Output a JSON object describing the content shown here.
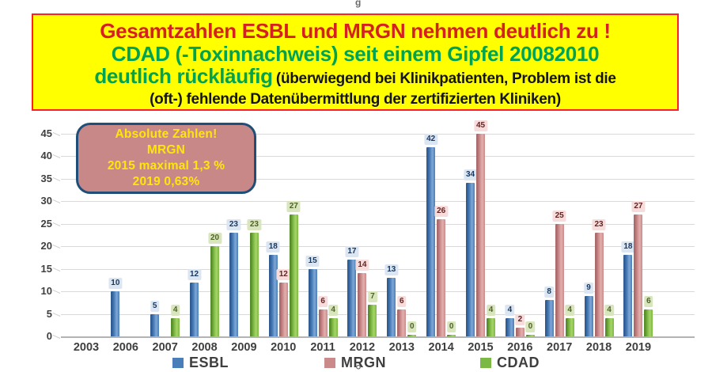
{
  "artifacts": {
    "top": "g",
    "bottom": "°"
  },
  "header": {
    "line1": "Gesamtzahlen ESBL und MRGN nehmen deutlich zu !",
    "line2": "CDAD (-Toxinnachweis) seit einem Gipfel 20082010",
    "line3_green": "deutlich rückläufig",
    "line3_black": "(überwiegend bei Klinikpatienten, Problem ist die",
    "line4": "(oft-) fehlende Datenübermittlung der zertifizierten Kliniken)",
    "colors": {
      "background": "#ffff00",
      "border": "#ff2020",
      "red_text": "#d61f1f",
      "green_text": "#00a351",
      "black_text": "#141414"
    }
  },
  "annotation": {
    "lines": [
      "Absolute Zahlen!",
      "MRGN",
      "2015 maximal 1,3 %",
      "2019 0,63%"
    ],
    "background": "#c98888",
    "border": "#1f4e79",
    "text_color": "#ffe60a"
  },
  "chart_data": {
    "type": "bar",
    "title": "",
    "xlabel": "",
    "ylabel": "",
    "categories": [
      "2003",
      "2006",
      "2007",
      "2008",
      "2009",
      "2010",
      "2011",
      "2012",
      "2013",
      "2014",
      "2015",
      "2016",
      "2017",
      "2018",
      "2019"
    ],
    "series": [
      {
        "name": "ESBL",
        "color": "#4a7eb8",
        "color_dark": "#2f5b92",
        "color_light": "#7fa7d6",
        "label_bg": "#dce6f2",
        "label_text": "#17375e",
        "values": [
          null,
          10,
          5,
          12,
          23,
          18,
          15,
          17,
          13,
          42,
          34,
          4,
          8,
          9,
          18
        ]
      },
      {
        "name": "MRGN",
        "color": "#cb8a8a",
        "color_dark": "#a96a6c",
        "color_light": "#e2b0ae",
        "label_bg": "#f6dcdb",
        "label_text": "#632423",
        "values": [
          null,
          null,
          null,
          null,
          null,
          12,
          6,
          14,
          6,
          26,
          45,
          2,
          25,
          23,
          27
        ]
      },
      {
        "name": "CDAD",
        "color": "#7cb844",
        "color_dark": "#578c2a",
        "color_light": "#a6d468",
        "label_bg": "#d9e6bd",
        "label_text": "#4f6228",
        "values": [
          null,
          null,
          4,
          20,
          23,
          27,
          4,
          7,
          0,
          0,
          4,
          0,
          4,
          4,
          6
        ]
      }
    ],
    "ylim": [
      0,
      45
    ],
    "ytick_step": 5,
    "grid": true,
    "data_labels": true,
    "legend_position": "bottom",
    "axis_text_color": "#3f3f3f",
    "grid_color": "#d9d9d9"
  }
}
